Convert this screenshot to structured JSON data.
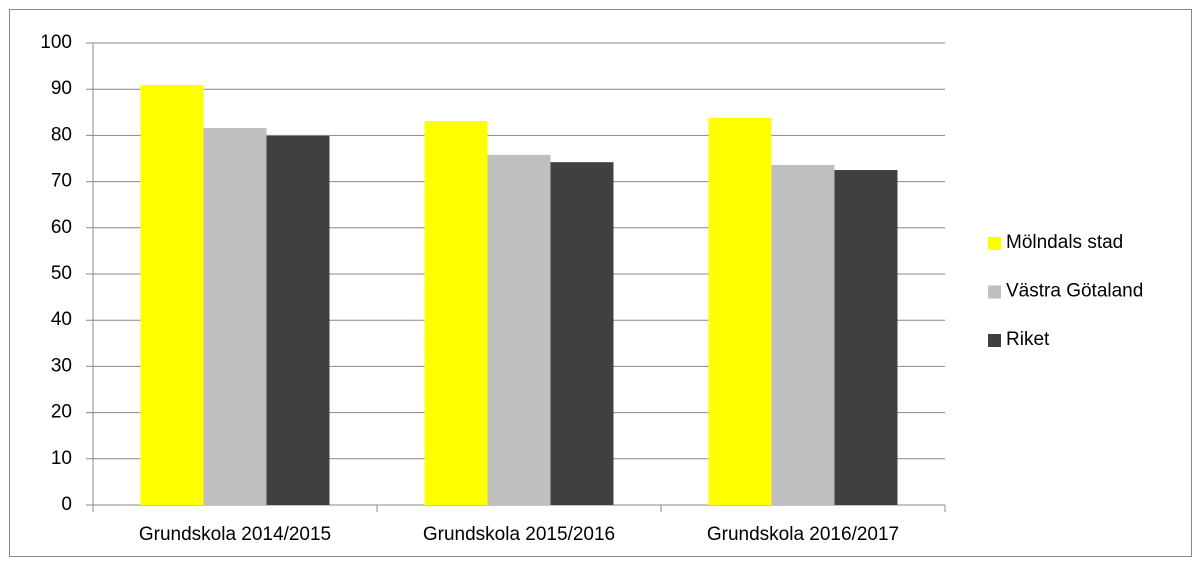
{
  "chart_data": {
    "type": "bar",
    "categories": [
      "Grundskola 2014/2015",
      "Grundskola 2015/2016",
      "Grundskola 2016/2017"
    ],
    "series": [
      {
        "name": "Mölndals stad",
        "color": "#ffff00",
        "values": [
          90.9,
          83.1,
          83.8
        ]
      },
      {
        "name": "Västra Götaland",
        "color": "#bfbfbf",
        "values": [
          81.6,
          75.8,
          73.6
        ]
      },
      {
        "name": "Riket",
        "color": "#404040",
        "values": [
          79.9,
          74.2,
          72.5
        ]
      }
    ],
    "ylim": [
      0,
      100
    ],
    "yticks": [
      0,
      10,
      20,
      30,
      40,
      50,
      60,
      70,
      80,
      90,
      100
    ],
    "grid": true,
    "legend": "right"
  }
}
